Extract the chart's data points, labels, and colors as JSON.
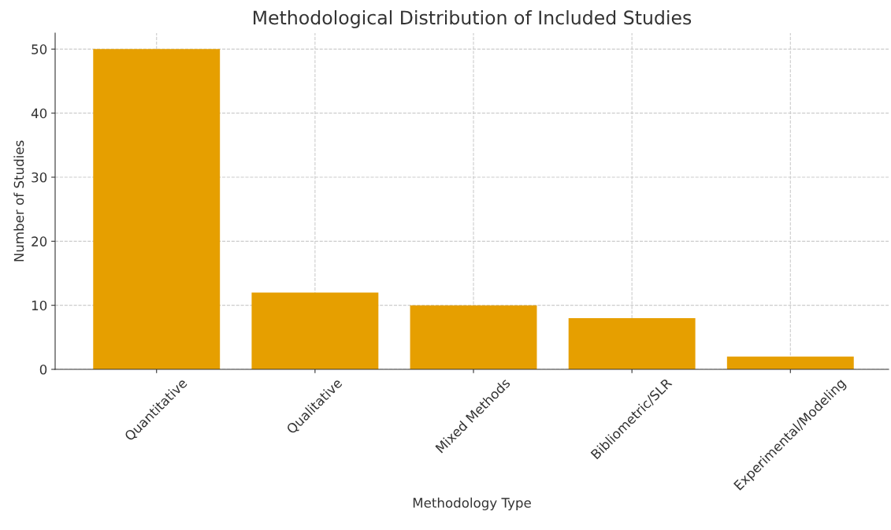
{
  "chart_data": {
    "type": "bar",
    "title": "Methodological Distribution of Included Studies",
    "xlabel": "Methodology Type",
    "ylabel": "Number of Studies",
    "categories": [
      "Quantitative",
      "Qualitative",
      "Mixed Methods",
      "Bibliometric/SLR",
      "Experimental/Modeling"
    ],
    "values": [
      50,
      12,
      10,
      8,
      2
    ],
    "color": "#e69f00",
    "ylim": [
      0,
      52.5
    ],
    "yticks": [
      0,
      10,
      20,
      30,
      40,
      50
    ],
    "grid": true,
    "line_style": "dashed"
  }
}
